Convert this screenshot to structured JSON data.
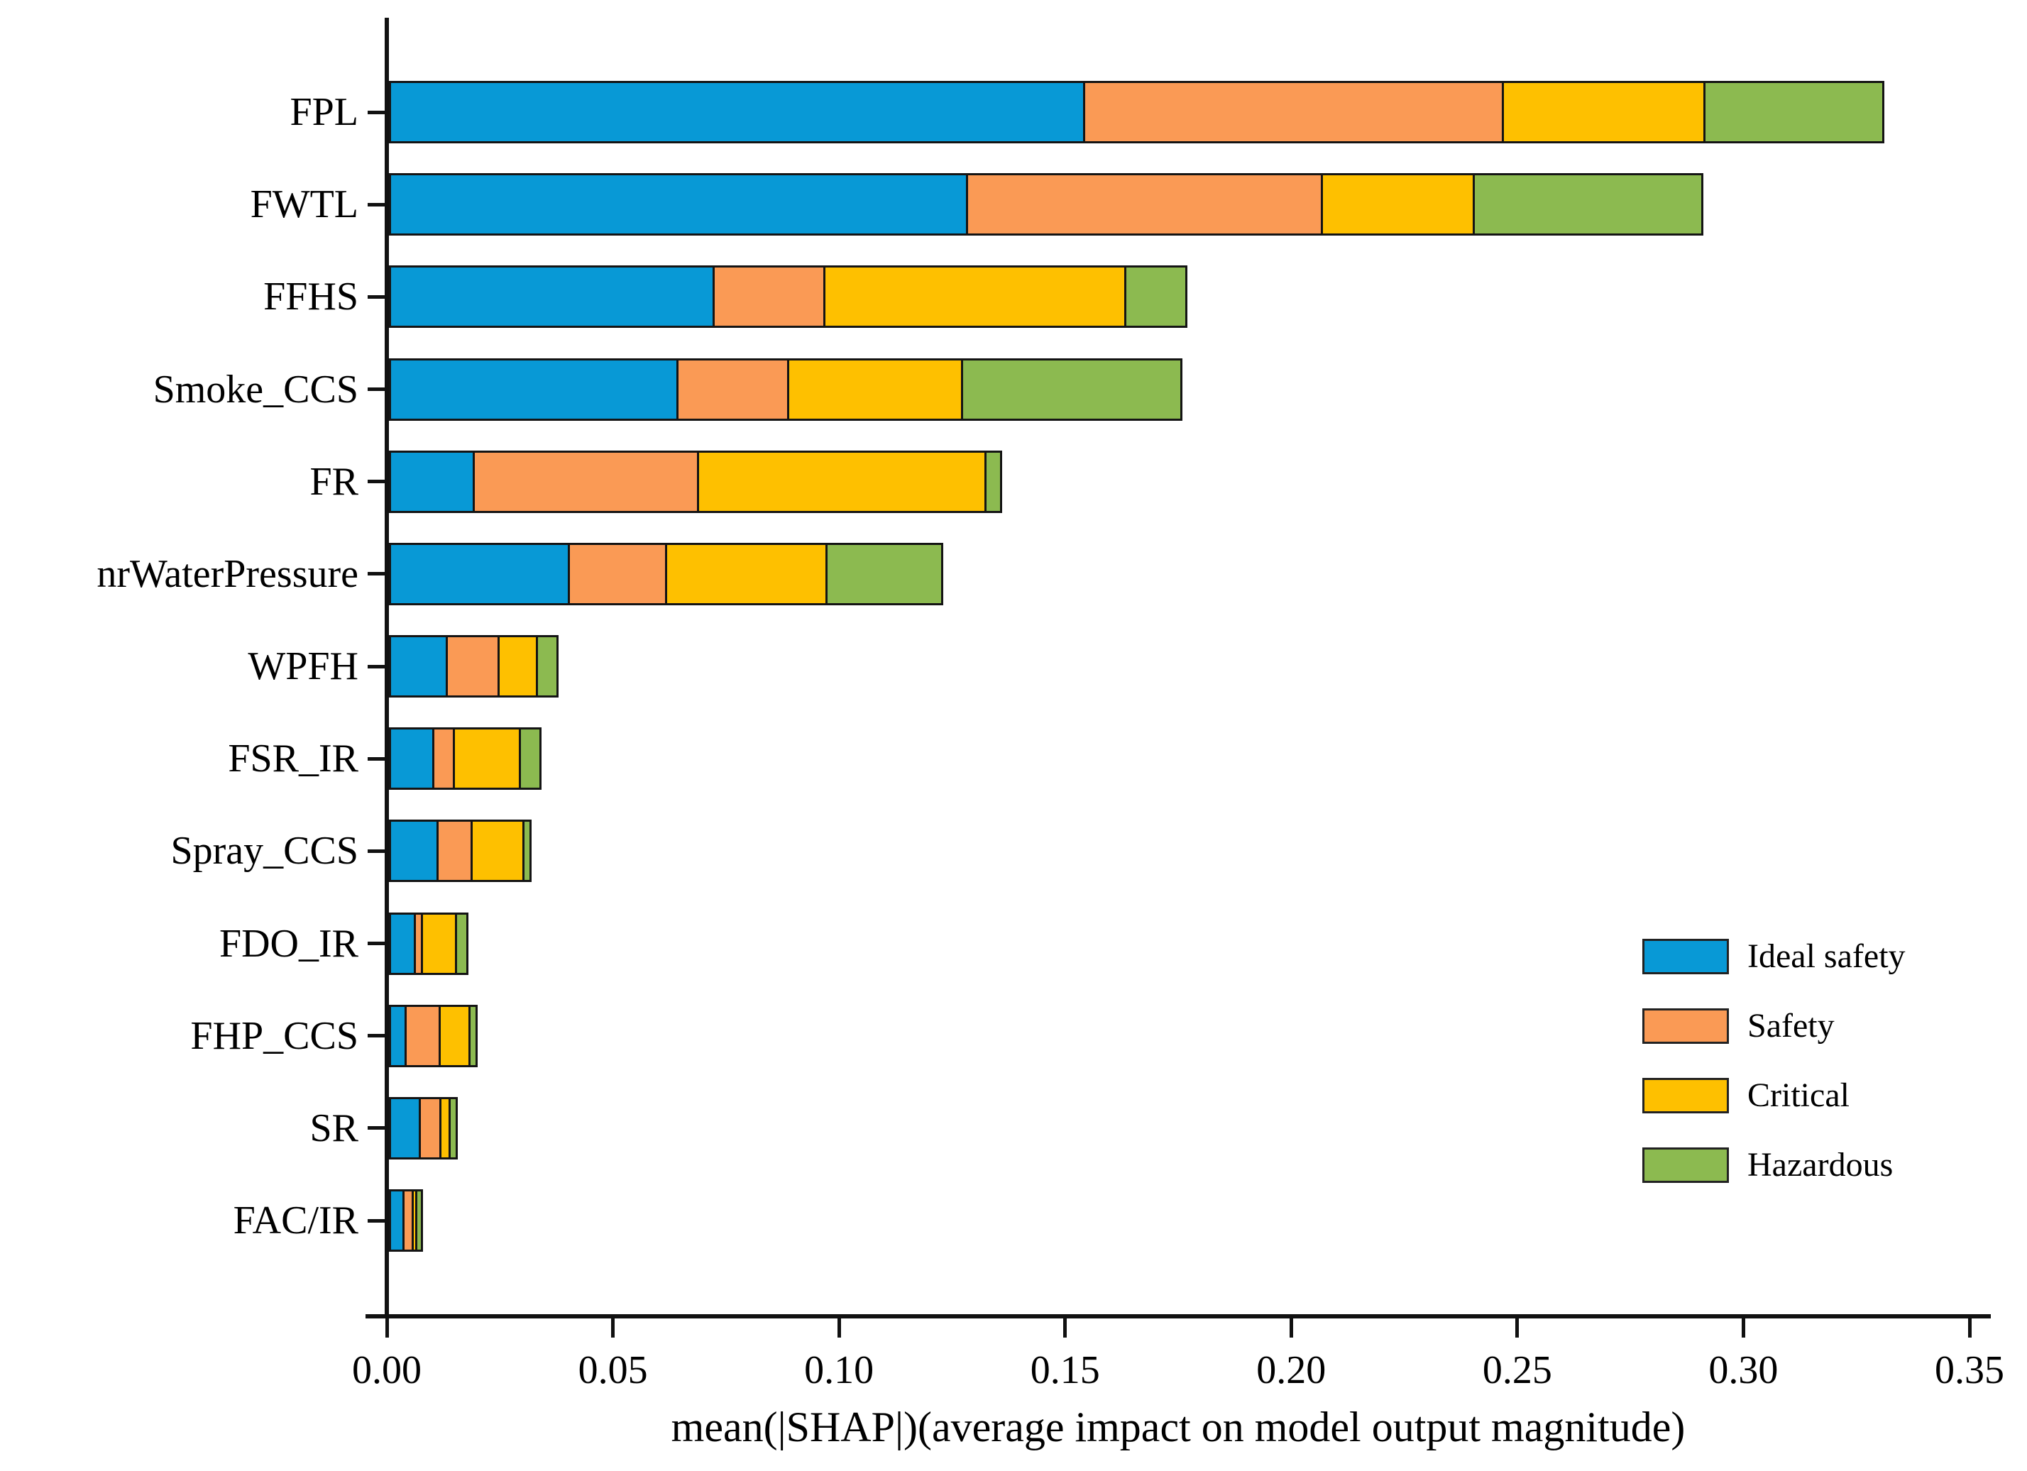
{
  "chart_data": {
    "type": "bar",
    "orientation": "horizontal",
    "stacked": true,
    "title": "",
    "xlabel": "mean(|SHAP|)(average impact on model output magnitude)",
    "ylabel": "",
    "xlim": [
      0,
      0.35
    ],
    "x_tick_labels": [
      "0.00",
      "0.05",
      "0.10",
      "0.15",
      "0.20",
      "0.25",
      "0.30",
      "0.35"
    ],
    "grid": false,
    "legend_position": "lower right",
    "categories": [
      "FPL",
      "FWTL",
      "FFHS",
      "Smoke_CCS",
      "FR",
      "nrWaterPressure",
      "WPFH",
      "FSR_IR",
      "Spray_CCS",
      "FDO_IR",
      "FHP_CCS",
      "SR",
      "FAC/IR"
    ],
    "series": [
      {
        "name": "Ideal safety",
        "color": "#0899d6",
        "values": [
          0.154,
          0.128,
          0.072,
          0.064,
          0.019,
          0.04,
          0.013,
          0.01,
          0.011,
          0.006,
          0.004,
          0.007,
          0.0035
        ]
      },
      {
        "name": "Safety",
        "color": "#fa9a55",
        "values": [
          0.093,
          0.079,
          0.025,
          0.025,
          0.05,
          0.022,
          0.012,
          0.005,
          0.008,
          0.002,
          0.008,
          0.005,
          0.0025
        ]
      },
      {
        "name": "Critical",
        "color": "#fec000",
        "values": [
          0.045,
          0.034,
          0.067,
          0.039,
          0.064,
          0.036,
          0.009,
          0.015,
          0.012,
          0.008,
          0.007,
          0.0025,
          0.0013
        ]
      },
      {
        "name": "Hazardous",
        "color": "#8cba50",
        "values": [
          0.04,
          0.051,
          0.014,
          0.049,
          0.004,
          0.026,
          0.005,
          0.005,
          0.002,
          0.003,
          0.002,
          0.002,
          0.0017
        ]
      }
    ]
  },
  "style": {
    "background": "#ffffff",
    "axis_color": "#111111",
    "text_color": "#000000",
    "bar_border_color": "#141414"
  }
}
